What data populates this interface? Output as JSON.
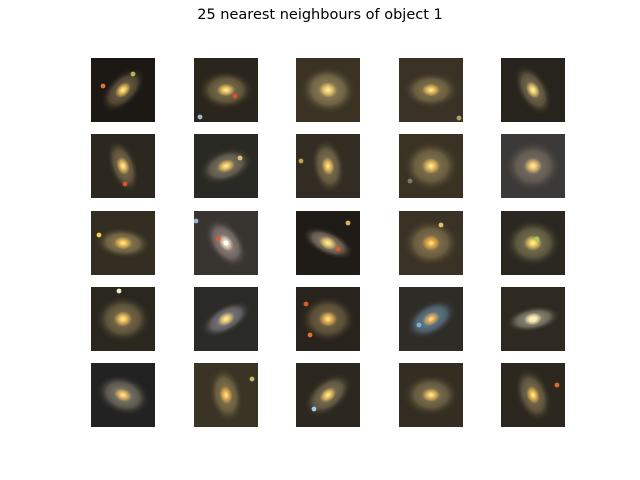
{
  "figure": {
    "title": "25 nearest neighbours of object 1"
  },
  "tiles": [
    {
      "bg": "#1c1915",
      "halo": "#7a6a4a",
      "core": "#f0c45a",
      "angle": -45,
      "aspect": 0.55,
      "extras": [
        {
          "dx": -20,
          "dy": -4,
          "c": "#e07030"
        },
        {
          "dx": 10,
          "dy": -16,
          "c": "#c0b060"
        }
      ]
    },
    {
      "bg": "#2a261d",
      "halo": "#8a7a52",
      "core": "#f2c860",
      "angle": 0,
      "aspect": 0.7,
      "extras": [
        {
          "dx": 9,
          "dy": 6,
          "c": "#e0502a"
        },
        {
          "dx": -26,
          "dy": 27,
          "c": "#9fb8d0"
        }
      ]
    },
    {
      "bg": "#3a3324",
      "halo": "#9a8a5c",
      "core": "#f4d070",
      "angle": 10,
      "aspect": 0.85,
      "extras": []
    },
    {
      "bg": "#3a3224",
      "halo": "#8f7f55",
      "core": "#f2c45a",
      "angle": 0,
      "aspect": 0.65,
      "extras": [
        {
          "dx": 28,
          "dy": 28,
          "c": "#b0a070"
        }
      ]
    },
    {
      "bg": "#27241d",
      "halo": "#857656",
      "core": "#f0d070",
      "angle": 60,
      "aspect": 0.55,
      "extras": []
    },
    {
      "bg": "#2c2820",
      "halo": "#857553",
      "core": "#f0c460",
      "angle": 70,
      "aspect": 0.5,
      "extras": [
        {
          "dx": 2,
          "dy": 18,
          "c": "#e0502a"
        }
      ]
    },
    {
      "bg": "#2a2a24",
      "halo": "#8a806a",
      "core": "#f2c860",
      "angle": -20,
      "aspect": 0.6,
      "extras": [
        {
          "dx": 14,
          "dy": -8,
          "c": "#e0c080"
        }
      ]
    },
    {
      "bg": "#322c22",
      "halo": "#8a7c58",
      "core": "#f2c05a",
      "angle": 80,
      "aspect": 0.6,
      "extras": [
        {
          "dx": -27,
          "dy": -5,
          "c": "#c8a050"
        }
      ]
    },
    {
      "bg": "#3a3324",
      "halo": "#8e7e55",
      "core": "#f0c460",
      "angle": 0,
      "aspect": 0.9,
      "extras": [
        {
          "dx": -21,
          "dy": 15,
          "c": "#708060"
        }
      ]
    },
    {
      "bg": "#3c3a38",
      "halo": "#807668",
      "core": "#f0c870",
      "angle": 0,
      "aspect": 0.9,
      "extras": []
    },
    {
      "bg": "#342e22",
      "halo": "#9a8a5a",
      "core": "#f4c050",
      "angle": 5,
      "aspect": 0.55,
      "extras": [
        {
          "dx": -24,
          "dy": -8,
          "c": "#f0d050"
        }
      ]
    },
    {
      "bg": "#383430",
      "halo": "#9c8e88",
      "core": "#f0d8c0",
      "angle": 55,
      "aspect": 0.6,
      "extras": [
        {
          "dx": -8,
          "dy": -4,
          "c": "#e05a30"
        },
        {
          "dx": 0,
          "dy": 0,
          "c": "#ffffff"
        },
        {
          "dx": -30,
          "dy": -22,
          "c": "#8fb8e0"
        }
      ]
    },
    {
      "bg": "#1f1c18",
      "halo": "#a09078",
      "core": "#f0d070",
      "angle": 25,
      "aspect": 0.45,
      "extras": [
        {
          "dx": 10,
          "dy": 6,
          "c": "#e05a2a"
        },
        {
          "dx": 20,
          "dy": -20,
          "c": "#e0b060"
        }
      ]
    },
    {
      "bg": "#3a3224",
      "halo": "#8e7e55",
      "core": "#f4b040",
      "angle": 0,
      "aspect": 0.85,
      "extras": [
        {
          "dx": 10,
          "dy": -18,
          "c": "#e0c070"
        }
      ]
    },
    {
      "bg": "#2a2820",
      "halo": "#857d5a",
      "core": "#f0d060",
      "angle": 0,
      "aspect": 0.85,
      "extras": [
        {
          "dx": 4,
          "dy": -4,
          "c": "#a0d060"
        }
      ]
    },
    {
      "bg": "#2a271f",
      "halo": "#877752",
      "core": "#f2c258",
      "angle": 0,
      "aspect": 0.85,
      "extras": [
        {
          "dx": -4,
          "dy": -28,
          "c": "#f0f0c0"
        }
      ]
    },
    {
      "bg": "#2a2a26",
      "halo": "#8c8890",
      "core": "#f0d070",
      "angle": -30,
      "aspect": 0.5,
      "extras": []
    },
    {
      "bg": "#28231c",
      "halo": "#7e6e4c",
      "core": "#f2b850",
      "angle": 0,
      "aspect": 0.85,
      "extras": [
        {
          "dx": -22,
          "dy": -15,
          "c": "#e05a28"
        },
        {
          "dx": -18,
          "dy": 16,
          "c": "#e07030"
        }
      ]
    },
    {
      "bg": "#2e2c26",
      "halo": "#6a8aa0",
      "core": "#f0b050",
      "angle": -30,
      "aspect": 0.6,
      "extras": [
        {
          "dx": -12,
          "dy": 6,
          "c": "#80b0d0"
        }
      ]
    },
    {
      "bg": "#2e2a22",
      "halo": "#a09a88",
      "core": "#fff0b0",
      "angle": -10,
      "aspect": 0.45,
      "extras": []
    },
    {
      "bg": "#222222",
      "halo": "#8c8474",
      "core": "#f0c060",
      "angle": 20,
      "aspect": 0.7,
      "extras": []
    },
    {
      "bg": "#3a3424",
      "halo": "#8e7e55",
      "core": "#f2b850",
      "angle": 80,
      "aspect": 0.6,
      "extras": [
        {
          "dx": 26,
          "dy": -16,
          "c": "#b0c070"
        }
      ]
    },
    {
      "bg": "#2c2820",
      "halo": "#8a7c5c",
      "core": "#f0c860",
      "angle": -40,
      "aspect": 0.6,
      "extras": [
        {
          "dx": -14,
          "dy": 14,
          "c": "#a0c8f0"
        }
      ]
    },
    {
      "bg": "#342e22",
      "halo": "#8a7c56",
      "core": "#f0c060",
      "angle": 0,
      "aspect": 0.75,
      "extras": []
    },
    {
      "bg": "#2c2820",
      "halo": "#877754",
      "core": "#f0c050",
      "angle": 70,
      "aspect": 0.6,
      "extras": [
        {
          "dx": 24,
          "dy": -10,
          "c": "#e06a2a"
        }
      ]
    }
  ]
}
